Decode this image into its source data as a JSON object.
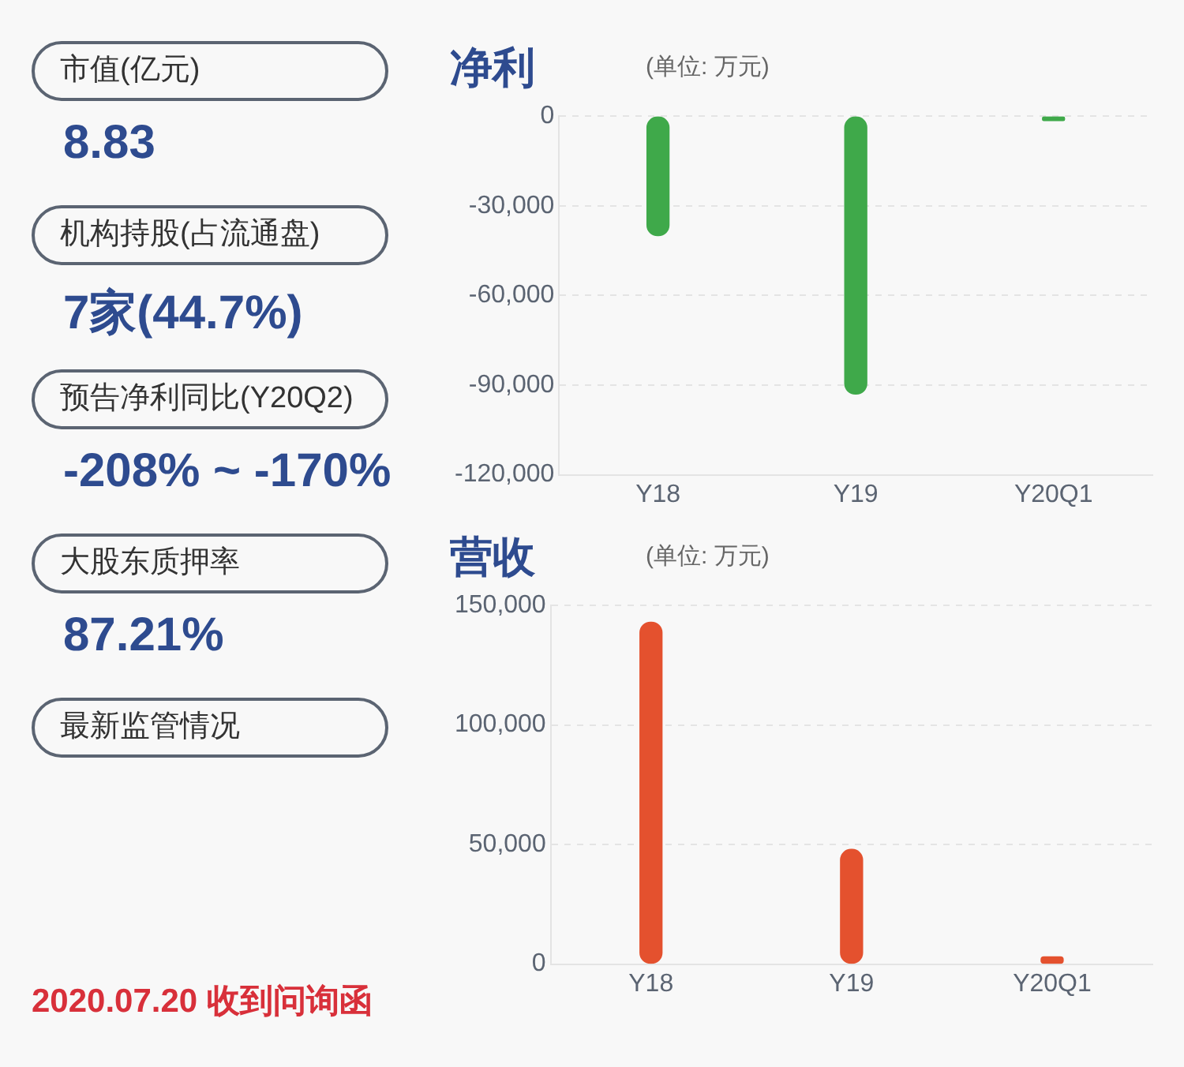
{
  "chart_data": [
    {
      "type": "other",
      "categories": [
        "市值(亿元)",
        "机构持股(占流通盘)",
        "预告净利同比(Y20Q2)",
        "大股东质押率",
        "最新监管情况"
      ],
      "value_labels": [
        "8.83",
        "7家(44.7%)",
        "-208% ~ -170%",
        "87.21%",
        null
      ],
      "annotations": [
        "2020.07.20 收到问询函"
      ]
    },
    {
      "type": "bar",
      "title": "净利",
      "subtitle": "(单位: 万元)",
      "categories": [
        "Y18",
        "Y19",
        "Y20Q1"
      ],
      "values": [
        -40000,
        -93000,
        -1500
      ],
      "color": "#3fa94a",
      "ylim": [
        -120000,
        0
      ],
      "yticks": [
        {
          "value": -120000,
          "label": "-120,000"
        },
        {
          "value": -90000,
          "label": "-90,000"
        },
        {
          "value": -60000,
          "label": "-60,000"
        },
        {
          "value": -30000,
          "label": "-30,000"
        },
        0
      ],
      "grid": "y",
      "legend": false
    },
    {
      "type": "bar",
      "title": "营收",
      "subtitle": "(单位: 万元)",
      "categories": [
        "Y18",
        "Y19",
        "Y20Q1"
      ],
      "values": [
        143000,
        48000,
        3000
      ],
      "color": "#e4512e",
      "ylim": [
        0,
        150000
      ],
      "yticks": [
        0,
        {
          "value": 50000,
          "label": "50,000"
        },
        {
          "value": 100000,
          "label": "100,000"
        },
        {
          "value": 150000,
          "label": "150,000"
        }
      ],
      "grid": "y",
      "legend": false
    }
  ]
}
